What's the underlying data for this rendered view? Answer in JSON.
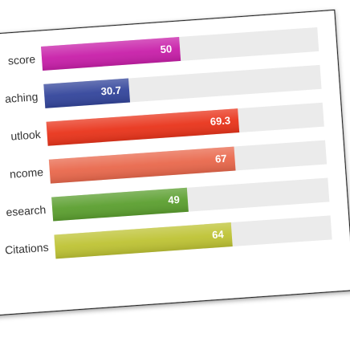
{
  "chart_data": {
    "type": "bar",
    "orientation": "horizontal",
    "categories": [
      "score",
      "aching",
      "utlook",
      "ncome",
      "esearch",
      "Citations"
    ],
    "values": [
      50,
      30.7,
      69.3,
      67,
      49,
      64
    ],
    "colors": [
      "#c81fa9",
      "#33459b",
      "#e9341b",
      "#e9684c",
      "#5b9f2f",
      "#bec334"
    ],
    "xlim": [
      0,
      100
    ],
    "track_color": "#ebebeb"
  }
}
